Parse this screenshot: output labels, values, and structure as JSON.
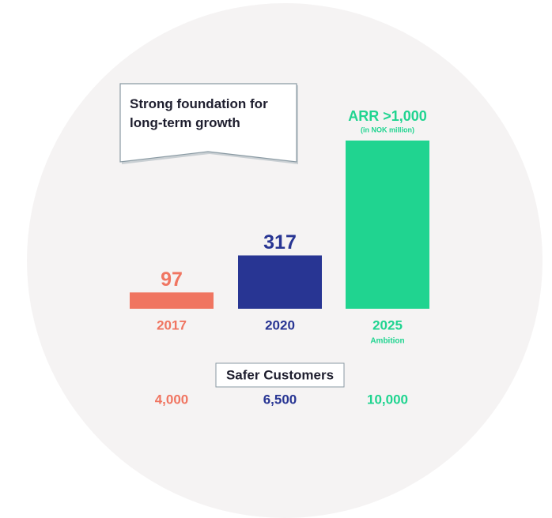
{
  "chart_data": {
    "type": "bar",
    "title": "Strong foundation for long-term growth",
    "categories": [
      "2017",
      "2020",
      "2025"
    ],
    "category_notes": [
      null,
      null,
      "Ambition"
    ],
    "values": [
      97,
      317,
      1000
    ],
    "value_labels": [
      "97",
      "317",
      "ARR >1,000"
    ],
    "value_notes": [
      null,
      null,
      "(in NOK million)"
    ],
    "colors": [
      "#f07561",
      "#283593",
      "#20d490"
    ],
    "customers": {
      "label": "Safer Customers",
      "values": [
        4000,
        6500,
        10000
      ],
      "value_labels": [
        "4,000",
        "6,500",
        "10,000"
      ]
    }
  }
}
